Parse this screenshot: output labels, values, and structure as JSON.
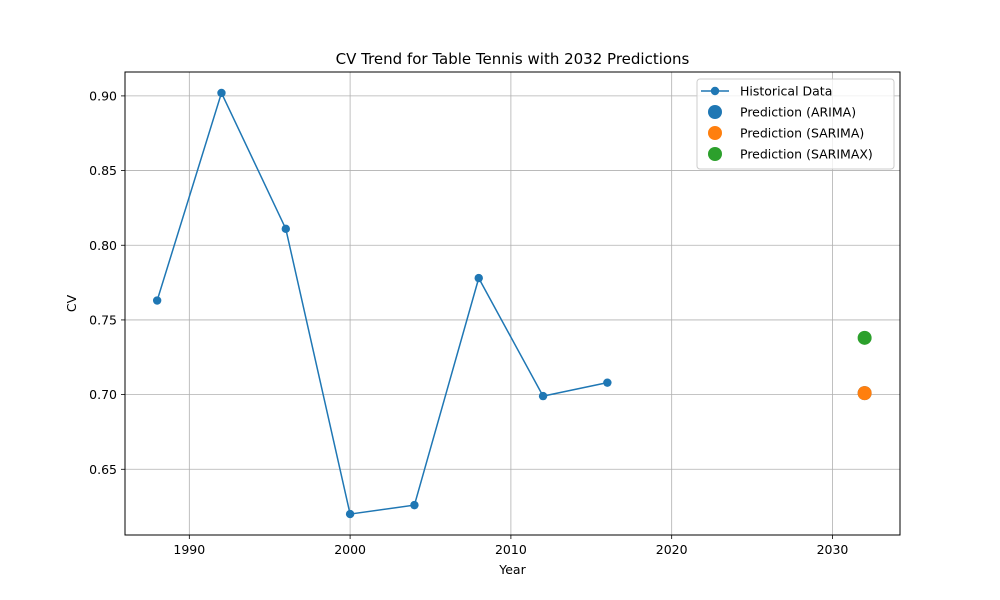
{
  "chart_data": {
    "type": "line",
    "title": "CV Trend for Table Tennis with 2032 Predictions",
    "xlabel": "Year",
    "ylabel": "CV",
    "xlim": [
      1986,
      2034.2
    ],
    "ylim": [
      0.606,
      0.916
    ],
    "xticks": [
      1990,
      2000,
      2010,
      2020,
      2030
    ],
    "yticks": [
      0.65,
      0.7,
      0.75,
      0.8,
      0.85,
      0.9
    ],
    "grid": true,
    "legend_position": "top-right",
    "series": [
      {
        "name": "Historical Data",
        "kind": "line-marker",
        "color": "#1f77b4",
        "x": [
          1988,
          1992,
          1996,
          2000,
          2004,
          2008,
          2012,
          2016
        ],
        "y": [
          0.763,
          0.902,
          0.811,
          0.62,
          0.626,
          0.778,
          0.699,
          0.708
        ]
      },
      {
        "name": "Prediction (ARIMA)",
        "kind": "point",
        "color": "#1f77b4",
        "x": [
          2032
        ],
        "y": [
          0.701
        ]
      },
      {
        "name": "Prediction (SARIMA)",
        "kind": "point",
        "color": "#ff7f0e",
        "x": [
          2032
        ],
        "y": [
          0.701
        ]
      },
      {
        "name": "Prediction (SARIMAX)",
        "kind": "point",
        "color": "#2ca02c",
        "x": [
          2032
        ],
        "y": [
          0.738
        ]
      }
    ]
  }
}
